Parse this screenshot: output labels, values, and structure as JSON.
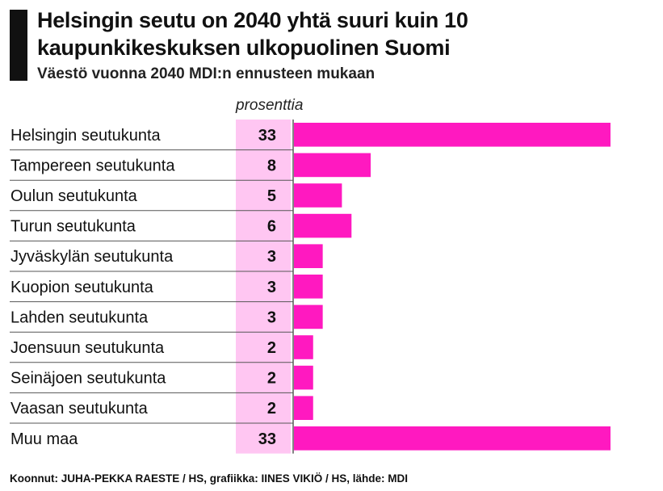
{
  "header": {
    "title": "Helsingin seutu on 2040 yhtä suuri kuin 10 kaupunkikeskuksen ulkopuolinen Suomi",
    "subtitle": "Väestö vuonna 2040 MDI:n ennusteen mukaan"
  },
  "chart_data": {
    "type": "bar",
    "orientation": "horizontal",
    "unit_label": "prosenttia",
    "categories": [
      "Helsingin seutukunta",
      "Tampereen seutukunta",
      "Oulun seutukunta",
      "Turun seutukunta",
      "Jyväskylän seutukunta",
      "Kuopion seutukunta",
      "Lahden seutukunta",
      "Joensuun seutukunta",
      "Seinäjoen seutukunta",
      "Vaasan seutukunta",
      "Muu maa"
    ],
    "values": [
      33,
      8,
      5,
      6,
      3,
      3,
      3,
      2,
      2,
      2,
      33
    ],
    "xlim": [
      0,
      33
    ],
    "grid": false,
    "legend": "none",
    "colors": {
      "bar": "#ff19c0",
      "value_column": "#ffc6f2",
      "separator": "#555555",
      "text": "#111111"
    }
  },
  "footer": {
    "credits": "Koonnut: JUHA-PEKKA RAESTE / HS, grafiikka: IINES VIKIÖ / HS, lähde: MDI"
  }
}
